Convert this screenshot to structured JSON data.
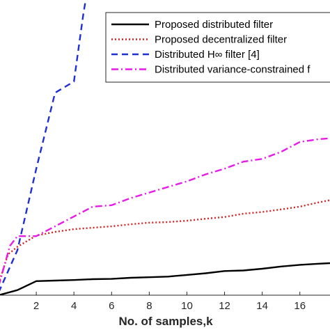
{
  "chart_data": {
    "type": "line",
    "title": "",
    "xlabel": "No. of samples,k",
    "ylabel": "",
    "xlim": [
      0.0,
      17.6
    ],
    "ylim": [
      0,
      10.5
    ],
    "xticks": [
      2,
      4,
      6,
      8,
      10,
      12,
      14,
      16
    ],
    "grid": false,
    "legend_position": "top-right",
    "series": [
      {
        "name": "Proposed distributed filter",
        "color": "#000000",
        "style": "solid",
        "x": [
          0,
          1,
          2,
          3,
          4,
          5,
          6,
          7,
          8,
          9,
          10,
          11,
          12,
          13,
          14,
          15,
          16,
          17,
          17.6
        ],
        "y": [
          0.0,
          0.18,
          0.5,
          0.52,
          0.54,
          0.57,
          0.58,
          0.62,
          0.64,
          0.66,
          0.72,
          0.78,
          0.86,
          0.88,
          0.94,
          1.02,
          1.08,
          1.12,
          1.14
        ]
      },
      {
        "name": "Proposed decentralized filter",
        "color": "#d42020",
        "style": "dotted",
        "x": [
          0,
          0.5,
          1,
          2,
          3,
          4,
          5,
          6,
          7,
          8,
          9,
          10,
          11,
          12,
          13,
          14,
          15,
          16,
          17,
          17.6
        ],
        "y": [
          0.42,
          1.45,
          1.72,
          2.12,
          2.25,
          2.35,
          2.4,
          2.45,
          2.52,
          2.58,
          2.6,
          2.65,
          2.72,
          2.78,
          2.9,
          2.96,
          3.05,
          3.15,
          3.3,
          3.38
        ]
      },
      {
        "name": "Distributed H∞ filter [4]",
        "color": "#1f2fd6",
        "style": "dashed",
        "x": [
          0,
          1,
          2,
          3,
          4,
          4.5,
          5
        ],
        "y": [
          0.1,
          1.6,
          4.5,
          7.2,
          7.6,
          10.0,
          12.0
        ]
      },
      {
        "name": "Distributed variance-constrained f",
        "color": "#e81ae8",
        "style": "dashdot",
        "x": [
          0,
          0.6,
          1,
          2,
          3,
          4,
          5,
          6,
          7,
          8,
          9,
          10,
          11,
          12,
          13,
          14,
          15,
          16,
          17,
          17.6
        ],
        "y": [
          0.32,
          1.75,
          2.1,
          2.1,
          2.45,
          2.8,
          3.15,
          3.2,
          3.45,
          3.65,
          3.85,
          4.05,
          4.3,
          4.5,
          4.75,
          4.85,
          5.1,
          5.45,
          5.55,
          5.58
        ]
      }
    ]
  }
}
